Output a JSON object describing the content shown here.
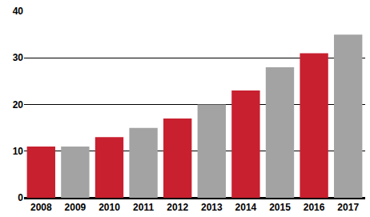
{
  "chart_data": {
    "type": "bar",
    "categories": [
      "2008",
      "2009",
      "2010",
      "2011",
      "2012",
      "2013",
      "2014",
      "2015",
      "2016",
      "2017"
    ],
    "values": [
      11,
      11,
      13,
      15,
      17,
      20,
      23,
      28,
      31,
      35
    ],
    "colors": [
      "#c8202f",
      "#a3a3a3",
      "#c8202f",
      "#a3a3a3",
      "#c8202f",
      "#a3a3a3",
      "#c8202f",
      "#a3a3a3",
      "#c8202f",
      "#a3a3a3"
    ],
    "ylim": [
      0,
      40
    ],
    "yticks": [
      0,
      10,
      20,
      30,
      40
    ],
    "grid": true
  }
}
